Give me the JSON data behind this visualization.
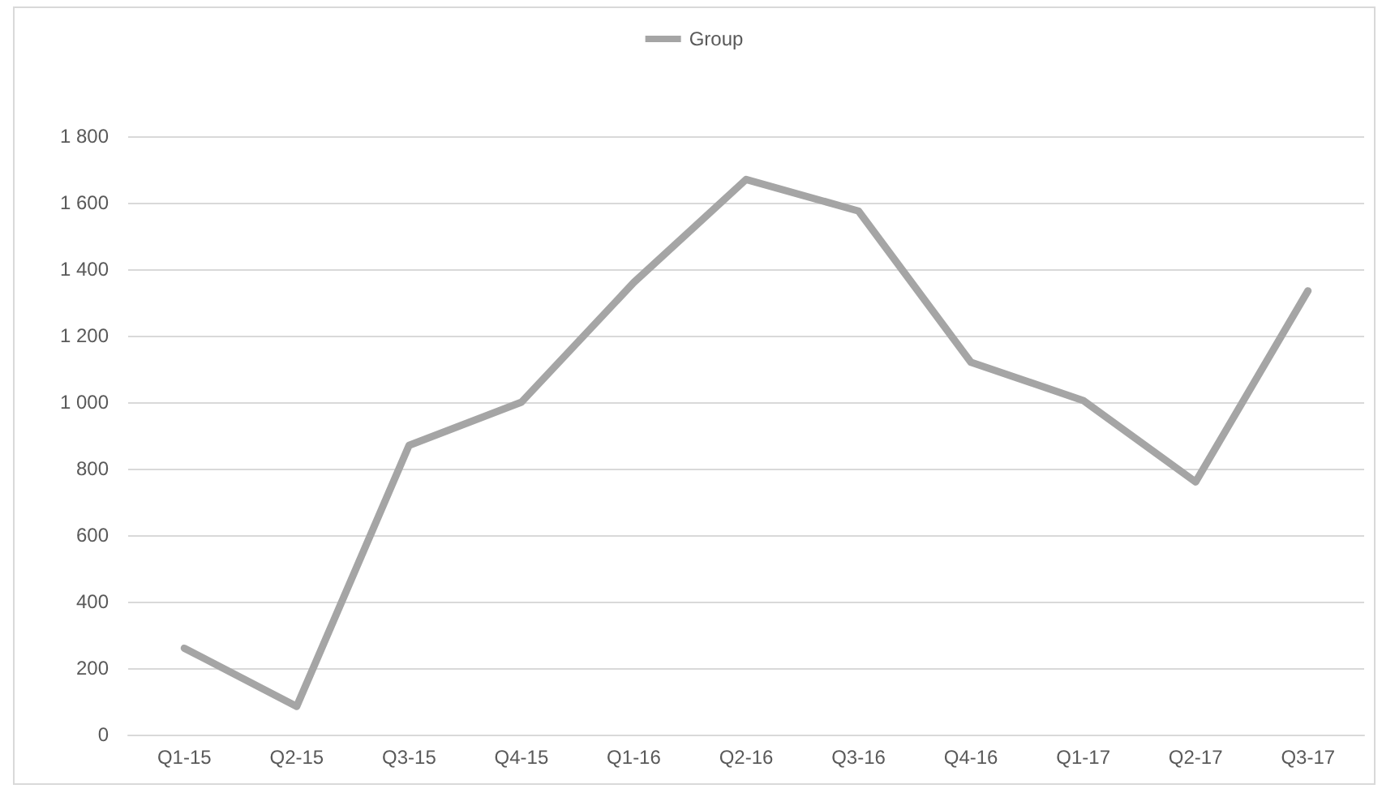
{
  "chart_data": {
    "type": "line",
    "categories": [
      "Q1-15",
      "Q2-15",
      "Q3-15",
      "Q4-15",
      "Q1-16",
      "Q2-16",
      "Q3-16",
      "Q4-16",
      "Q1-17",
      "Q2-17",
      "Q3-17"
    ],
    "series": [
      {
        "name": "Group",
        "color": "#a5a5a5",
        "values": [
          260,
          85,
          870,
          1000,
          1360,
          1670,
          1575,
          1120,
          1005,
          760,
          1335
        ]
      }
    ],
    "ylim": [
      0,
      1800
    ],
    "yticks": [
      0,
      200,
      400,
      600,
      800,
      {
        "value": 1000,
        "label": "1 000"
      },
      {
        "value": 1200,
        "label": "1 200"
      },
      {
        "value": 1400,
        "label": "1 400"
      },
      {
        "value": 1600,
        "label": "1 600"
      },
      {
        "value": 1800,
        "label": "1 800"
      }
    ],
    "grid": "y",
    "legend": "top",
    "marker": "none",
    "line_style": "solid"
  }
}
